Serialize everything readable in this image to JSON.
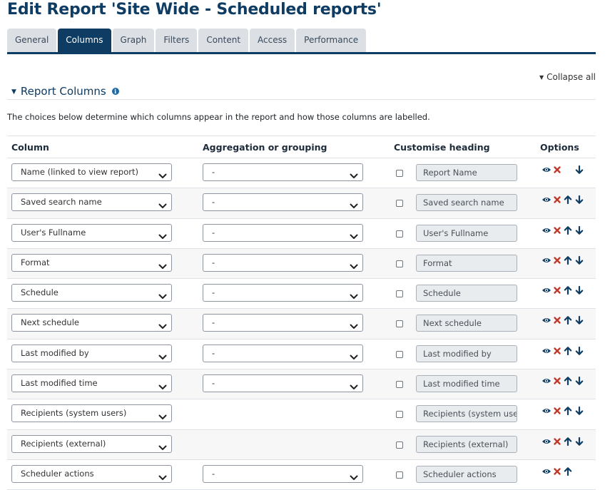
{
  "page": {
    "title": "Edit Report 'Site Wide - Scheduled reports'"
  },
  "tabs": [
    {
      "label": "General",
      "active": false
    },
    {
      "label": "Columns",
      "active": true
    },
    {
      "label": "Graph",
      "active": false
    },
    {
      "label": "Filters",
      "active": false
    },
    {
      "label": "Content",
      "active": false
    },
    {
      "label": "Access",
      "active": false
    },
    {
      "label": "Performance",
      "active": false
    }
  ],
  "collapse_all": "Collapse all",
  "section": {
    "title": "Report Columns",
    "description": "The choices below determine which columns appear in the report and how those columns are labelled."
  },
  "table": {
    "headers": {
      "column": "Column",
      "aggregation": "Aggregation or grouping",
      "heading": "Customise heading",
      "options": "Options"
    },
    "rows": [
      {
        "column": "Name (linked to view report)",
        "aggregation": "-",
        "heading": "Report Name",
        "customised": false,
        "up": false,
        "down": true
      },
      {
        "column": "Saved search name",
        "aggregation": "-",
        "heading": "Saved search name",
        "customised": false,
        "up": true,
        "down": true
      },
      {
        "column": "User's Fullname",
        "aggregation": "-",
        "heading": "User's Fullname",
        "customised": false,
        "up": true,
        "down": true
      },
      {
        "column": "Format",
        "aggregation": "-",
        "heading": "Format",
        "customised": false,
        "up": true,
        "down": true
      },
      {
        "column": "Schedule",
        "aggregation": "-",
        "heading": "Schedule",
        "customised": false,
        "up": true,
        "down": true
      },
      {
        "column": "Next schedule",
        "aggregation": "-",
        "heading": "Next schedule",
        "customised": false,
        "up": true,
        "down": true
      },
      {
        "column": "Last modified by",
        "aggregation": "-",
        "heading": "Last modified by",
        "customised": false,
        "up": true,
        "down": true
      },
      {
        "column": "Last modified time",
        "aggregation": "-",
        "heading": "Last modified time",
        "customised": false,
        "up": true,
        "down": true
      },
      {
        "column": "Recipients (system users)",
        "aggregation": null,
        "heading": "Recipients (system users)",
        "customised": false,
        "up": true,
        "down": true
      },
      {
        "column": "Recipients (external)",
        "aggregation": null,
        "heading": "Recipients (external)",
        "customised": false,
        "up": true,
        "down": true
      },
      {
        "column": "Scheduler actions",
        "aggregation": "-",
        "heading": "Scheduler actions",
        "customised": false,
        "up": true,
        "down": false
      }
    ]
  },
  "icons": {
    "hide": "eye-icon",
    "delete": "delete-icon",
    "move_up": "arrow-up-icon",
    "move_down": "arrow-down-icon",
    "dropdown": "chevron-down-icon",
    "info": "info-icon"
  },
  "colors": {
    "brand": "#0f3c62",
    "delete": "#c0392b",
    "tab_inactive": "#dcdfe3"
  }
}
